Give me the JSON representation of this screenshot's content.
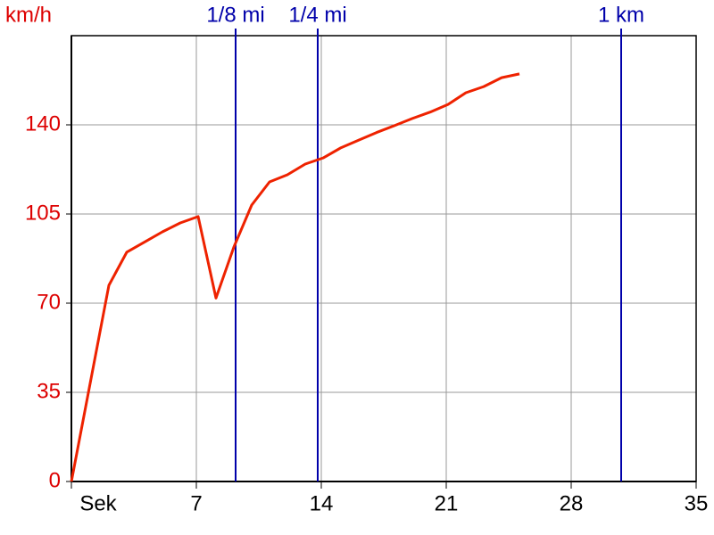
{
  "chart_data": {
    "type": "line",
    "y_label": "km/h",
    "x": [
      0,
      2.1,
      3.1,
      4.1,
      5.1,
      6.1,
      7.1,
      8.1,
      9.1,
      10.1,
      11.1,
      12.1,
      13.1,
      14.1,
      15.1,
      16.1,
      17.1,
      18.1,
      19.1,
      20.1,
      21.1,
      22.1,
      23.1,
      24.1,
      25.1
    ],
    "series": [
      {
        "color": "#ee2200",
        "values": [
          0,
          77,
          90,
          94,
          98,
          101.5,
          104,
          72,
          92,
          108.5,
          117.6,
          120.4,
          124.6,
          127,
          131,
          134,
          137,
          139.7,
          142.5,
          145,
          148,
          152.6,
          155,
          158.5,
          160
        ]
      }
    ],
    "xlim": [
      0,
      35
    ],
    "xticks": [
      {
        "value": 0,
        "label": "Sek"
      },
      7,
      14,
      21,
      28,
      35
    ],
    "ylim": [
      0,
      175
    ],
    "yticks": [
      0,
      35,
      70,
      105,
      140
    ],
    "grid": true,
    "markers": [
      {
        "x": 9.2,
        "label": "1/8 mi"
      },
      {
        "x": 13.8,
        "label": "1/4 mi"
      },
      {
        "x": 30.8,
        "label": "1 km"
      }
    ],
    "marker_color": "#0000aa",
    "axis_label_color": "#dd0000"
  }
}
